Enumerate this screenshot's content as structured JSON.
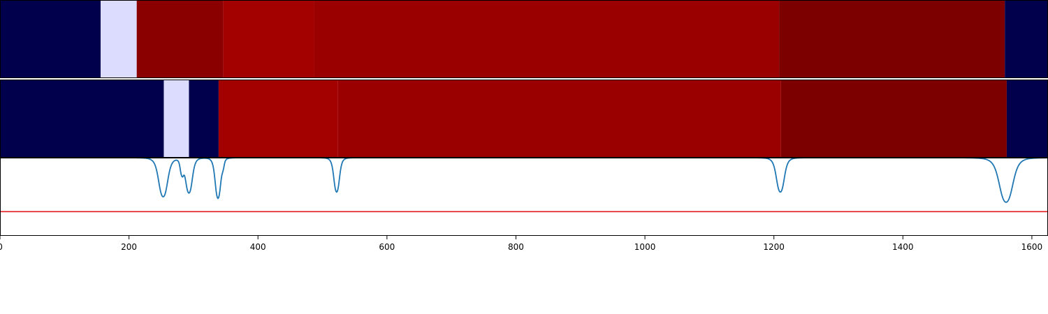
{
  "chart_data": {
    "type": "heatmap",
    "xlim": [
      0,
      1625
    ],
    "xticks": [
      0,
      200,
      400,
      600,
      800,
      1000,
      1200,
      1400,
      1600
    ],
    "xtick_labels": [
      "0",
      "200",
      "400",
      "600",
      "800",
      "1000",
      "1200",
      "1400",
      "1600"
    ],
    "grid": false,
    "legend": "none",
    "colormap": "seismic",
    "rows": [
      {
        "segments": [
          {
            "start": 0,
            "end": 156,
            "color": "#00004c"
          },
          {
            "start": 156,
            "end": 212,
            "color": "#dcdcff"
          },
          {
            "start": 212,
            "end": 346,
            "color": "#8a0000"
          },
          {
            "start": 346,
            "end": 487,
            "color": "#a30000"
          },
          {
            "start": 487,
            "end": 1208,
            "color": "#9a0000"
          },
          {
            "start": 1208,
            "end": 1558,
            "color": "#7c0000"
          },
          {
            "start": 1558,
            "end": 1625,
            "color": "#00004c"
          }
        ]
      },
      {
        "segments": [
          {
            "start": 0,
            "end": 254,
            "color": "#00004c"
          },
          {
            "start": 254,
            "end": 293,
            "color": "#dcdcff"
          },
          {
            "start": 293,
            "end": 339,
            "color": "#00004c"
          },
          {
            "start": 339,
            "end": 524,
            "color": "#a30000"
          },
          {
            "start": 524,
            "end": 1211,
            "color": "#9a0000"
          },
          {
            "start": 1211,
            "end": 1561,
            "color": "#7c0000"
          },
          {
            "start": 1561,
            "end": 1625,
            "color": "#00004c"
          }
        ]
      }
    ],
    "line_panel": {
      "ylim": [
        0,
        1
      ],
      "threshold": 0.31,
      "threshold_color": "#e31a1c",
      "line_color": "#1f77b4",
      "baseline": 1.0,
      "dips": [
        {
          "x": 253,
          "depth": 0.5,
          "width": 8
        },
        {
          "x": 282,
          "depth": 0.18,
          "width": 3
        },
        {
          "x": 293,
          "depth": 0.45,
          "width": 6
        },
        {
          "x": 338,
          "depth": 0.52,
          "width": 5
        },
        {
          "x": 346,
          "depth": 0.07,
          "width": 2
        },
        {
          "x": 522,
          "depth": 0.44,
          "width": 5
        },
        {
          "x": 1210,
          "depth": 0.44,
          "width": 7
        },
        {
          "x": 1560,
          "depth": 0.57,
          "width": 12
        }
      ]
    }
  }
}
